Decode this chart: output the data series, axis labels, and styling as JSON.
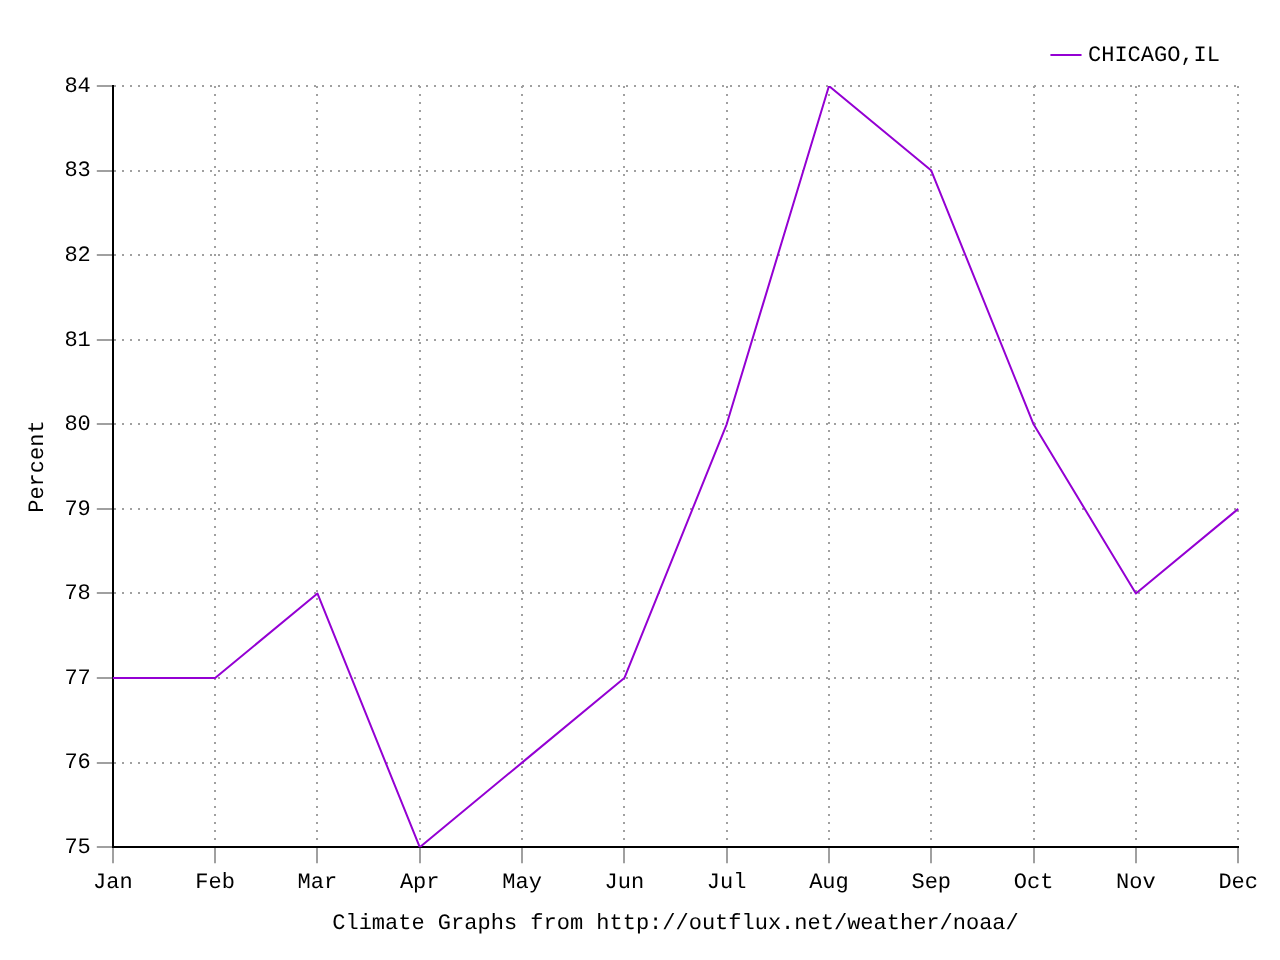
{
  "chart_data": {
    "type": "line",
    "ylabel": "Percent",
    "xlabel": "Climate Graphs from http://outflux.net/weather/noaa/",
    "categories": [
      "Jan",
      "Feb",
      "Mar",
      "Apr",
      "May",
      "Jun",
      "Jul",
      "Aug",
      "Sep",
      "Oct",
      "Nov",
      "Dec"
    ],
    "series": [
      {
        "name": "CHICAGO,IL",
        "color": "#9400d3",
        "values": [
          77,
          77,
          78,
          75,
          76,
          77,
          80,
          84,
          83,
          80,
          78,
          79
        ]
      }
    ],
    "ylim": [
      75,
      84
    ],
    "yticks": [
      75,
      76,
      77,
      78,
      79,
      80,
      81,
      82,
      83,
      84
    ],
    "grid": true,
    "legend": "top right",
    "marker": "none",
    "line_style": "solid"
  }
}
